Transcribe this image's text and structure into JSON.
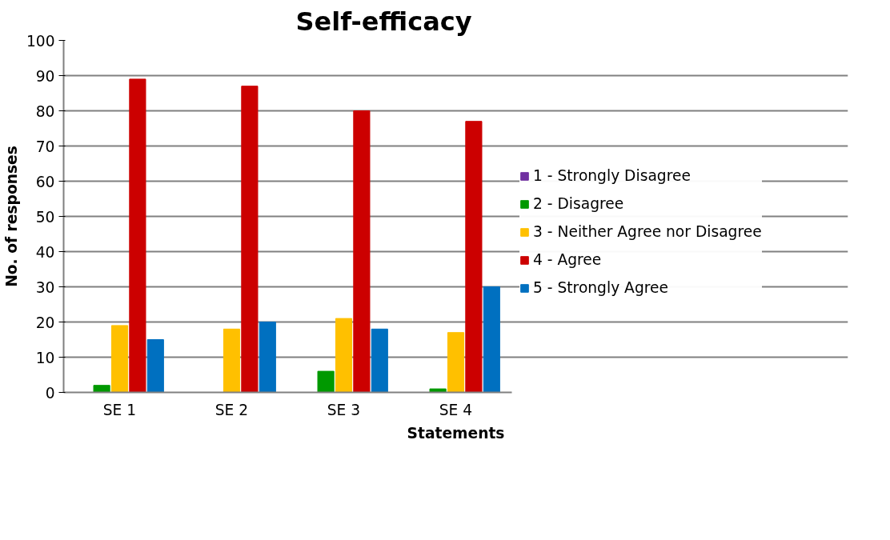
{
  "chart_data": {
    "type": "bar",
    "title": "Self-efficacy",
    "xlabel": "Statements",
    "ylabel": "No. of responses",
    "categories": [
      "SE 1",
      "SE 2",
      "SE 3",
      "SE 4"
    ],
    "series": [
      {
        "name": "1 - Strongly Disagree",
        "color": "#7030a0",
        "values": [
          0,
          0,
          0,
          0
        ]
      },
      {
        "name": "2 - Disagree",
        "color": "#009900",
        "values": [
          2,
          0,
          6,
          1
        ]
      },
      {
        "name": "3 - Neither Agree nor Disagree",
        "color": "#ffc000",
        "values": [
          19,
          18,
          21,
          17
        ]
      },
      {
        "name": "4 - Agree",
        "color": "#cc0000",
        "values": [
          89,
          87,
          80,
          77
        ]
      },
      {
        "name": "5 - Strongly Agree",
        "color": "#0070c0",
        "values": [
          15,
          20,
          18,
          30
        ]
      }
    ],
    "ylim": [
      0,
      100
    ],
    "yticks": [
      0,
      10,
      20,
      30,
      40,
      50,
      60,
      70,
      80,
      90,
      100
    ],
    "grid": "y",
    "legend": "right"
  }
}
